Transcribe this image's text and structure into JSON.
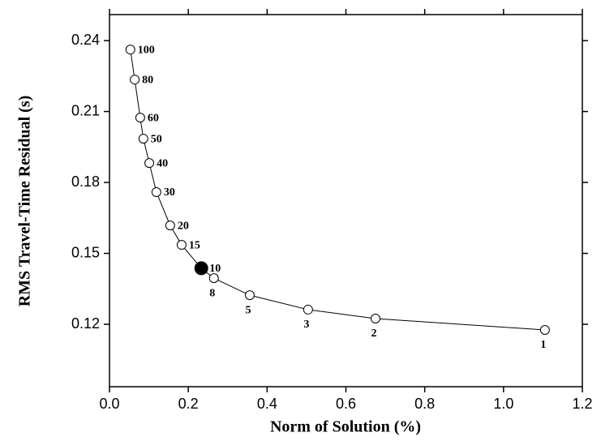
{
  "chart_data": {
    "type": "line",
    "x_label": "Norm of Solution (%)",
    "y_label": "RMS Travel-Time Residual (s)",
    "x": [
      0.053,
      0.064,
      0.078,
      0.086,
      0.101,
      0.119,
      0.154,
      0.183,
      0.233,
      0.265,
      0.356,
      0.504,
      0.675,
      1.105
    ],
    "values": [
      0.2362,
      0.2235,
      0.2074,
      0.1985,
      0.1882,
      0.1759,
      0.1618,
      0.1536,
      0.1437,
      0.1395,
      0.1323,
      0.1262,
      0.1224,
      0.1176
    ],
    "point_labels": [
      "100",
      "80",
      "60",
      "50",
      "40",
      "30",
      "20",
      "15",
      "10",
      "8",
      "5",
      "3",
      "2",
      "1"
    ],
    "highlight": 8,
    "color": "#000000",
    "xlim": [
      0,
      1.2
    ],
    "xticks": [
      {
        "value": 0,
        "label": "0.0"
      },
      0.2,
      0.4,
      0.6,
      0.8,
      {
        "value": 1,
        "label": "1.0"
      },
      1.2
    ],
    "ylim": [
      0.0936,
      0.251
    ],
    "yticks": [
      0.12,
      0.15,
      0.18,
      0.21,
      0.24
    ]
  }
}
